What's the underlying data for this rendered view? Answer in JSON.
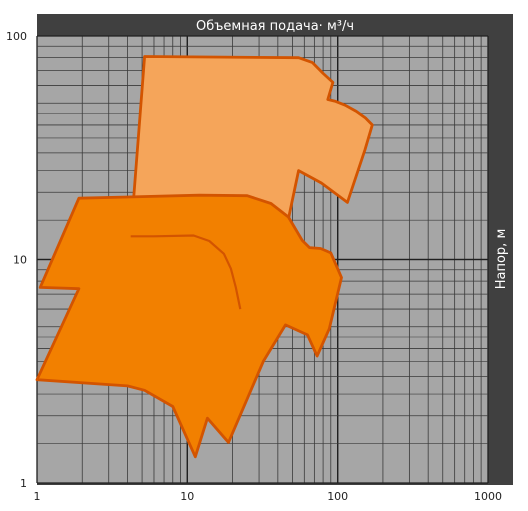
{
  "chart_data": {
    "type": "area",
    "top_label": "Объемная подача· м³/ч",
    "right_label": "Напор, м",
    "x_scale": "log",
    "y_scale": "log",
    "xlim": [
      1,
      1000
    ],
    "ylim": [
      1,
      100
    ],
    "x_ticks": [
      "1",
      "10",
      "100",
      "1000"
    ],
    "y_ticks": [
      "1",
      "10",
      "100"
    ],
    "grid": true,
    "colors": {
      "plot_background": "#a6a6a6",
      "frame": "#404040",
      "grid_major": "#202020",
      "grid_minor": "#3a3a3a",
      "upper_fill": "#f5a55a",
      "lower_fill": "#f28000",
      "outline": "#d35400"
    },
    "series": [
      {
        "color": "#f5a55a",
        "points": [
          [
            5.2,
            81
          ],
          [
            55,
            80
          ],
          [
            68,
            76
          ],
          [
            80,
            68
          ],
          [
            93,
            62
          ],
          [
            86,
            52
          ],
          [
            97,
            51
          ],
          [
            112,
            49
          ],
          [
            133,
            46
          ],
          [
            153,
            43
          ],
          [
            170,
            40
          ],
          [
            152,
            31
          ],
          [
            116,
            18
          ],
          [
            78,
            22
          ],
          [
            55,
            25
          ],
          [
            36,
            6.5
          ],
          [
            37,
            9
          ],
          [
            31,
            12
          ],
          [
            22,
            13
          ],
          [
            11,
            12.8
          ],
          [
            6,
            12.7
          ],
          [
            4.2,
            12.7
          ]
        ]
      },
      {
        "color": "#f28000",
        "points": [
          [
            1.9,
            18.8
          ],
          [
            12,
            19.4
          ],
          [
            25,
            19.3
          ],
          [
            36,
            17.8
          ],
          [
            47,
            15.5
          ],
          [
            58,
            12.2
          ],
          [
            65,
            11.3
          ],
          [
            77,
            11.2
          ],
          [
            90,
            10.7
          ],
          [
            106,
            8.3
          ],
          [
            88,
            4.9
          ],
          [
            73,
            3.7
          ],
          [
            63,
            4.6
          ],
          [
            45,
            5.1
          ],
          [
            32,
            3.5
          ],
          [
            18.8,
            1.52
          ],
          [
            13.6,
            1.95
          ],
          [
            11.3,
            1.31
          ],
          [
            8,
            2.2
          ],
          [
            5.2,
            2.6
          ],
          [
            4,
            2.72
          ],
          [
            1,
            2.9
          ],
          [
            1.9,
            7.4
          ],
          [
            1.05,
            7.5
          ]
        ]
      },
      {
        "kind": "inner_outline",
        "color": "#d35400",
        "points": [
          [
            4.2,
            12.7
          ],
          [
            6,
            12.7
          ],
          [
            11,
            12.8
          ],
          [
            14,
            12.1
          ],
          [
            17.5,
            10.6
          ],
          [
            19.5,
            9.1
          ],
          [
            21,
            7.5
          ],
          [
            22.5,
            6
          ]
        ]
      }
    ]
  }
}
